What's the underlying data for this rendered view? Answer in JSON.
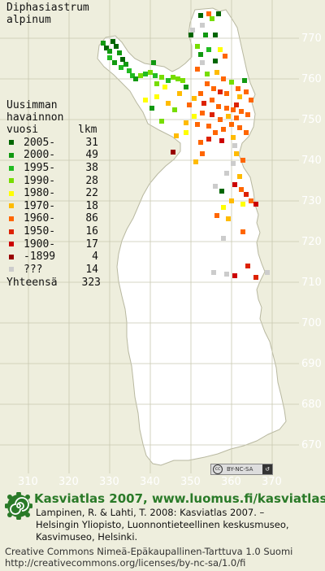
{
  "species": {
    "line1": "Diphasiastrum",
    "line2": "alpinum"
  },
  "legend": {
    "header1": "Uusimman",
    "header2": "havainnon",
    "header3_left": "vuosi",
    "header3_right": "lkm",
    "items": [
      {
        "label": "2005-",
        "count": "31",
        "color": "#006600"
      },
      {
        "label": "2000-",
        "count": "49",
        "color": "#119911"
      },
      {
        "label": "1995-",
        "count": "38",
        "color": "#22bb22"
      },
      {
        "label": "1990-",
        "count": "28",
        "color": "#77dd00"
      },
      {
        "label": "1980-",
        "count": "22",
        "color": "#ffff00"
      },
      {
        "label": "1970-",
        "count": "18",
        "color": "#ffbb00"
      },
      {
        "label": "1960-",
        "count": "86",
        "color": "#ff6600"
      },
      {
        "label": "1950-",
        "count": "16",
        "color": "#dd2200"
      },
      {
        "label": "1900-",
        "count": "17",
        "color": "#cc0000"
      },
      {
        "label": "-1899",
        "count": "4",
        "color": "#990000"
      },
      {
        "label": "???",
        "count": "14",
        "color": "#cccccc"
      }
    ],
    "total_label": "Yhteensä",
    "total_count": "323"
  },
  "axes": {
    "y_labels": [
      "770",
      "760",
      "750",
      "740",
      "730",
      "720",
      "710",
      "700",
      "690",
      "680",
      "670"
    ],
    "x_labels": [
      "310",
      "320",
      "330",
      "340",
      "350",
      "360",
      "370"
    ]
  },
  "license_badge": {
    "cc": "cc",
    "terms": "BY-NC-SA"
  },
  "credits": {
    "title": "Kasviatlas 2007, www.luomus.fi/kasviatlas",
    "cite1": "Lampinen, R. & Lahti, T. 2008: Kasviatlas 2007. –",
    "cite2": "Helsingin Yliopisto, Luonnontieteellinen keskusmuseo,",
    "cite3": "Kasvimuseo, Helsinki.",
    "license1": "Creative Commons Nimeä-Epäkaupallinen-Tarttuva 1.0 Suomi",
    "license2": "http://creativecommons.org/licenses/by-nc-sa/1.0/fi"
  }
}
